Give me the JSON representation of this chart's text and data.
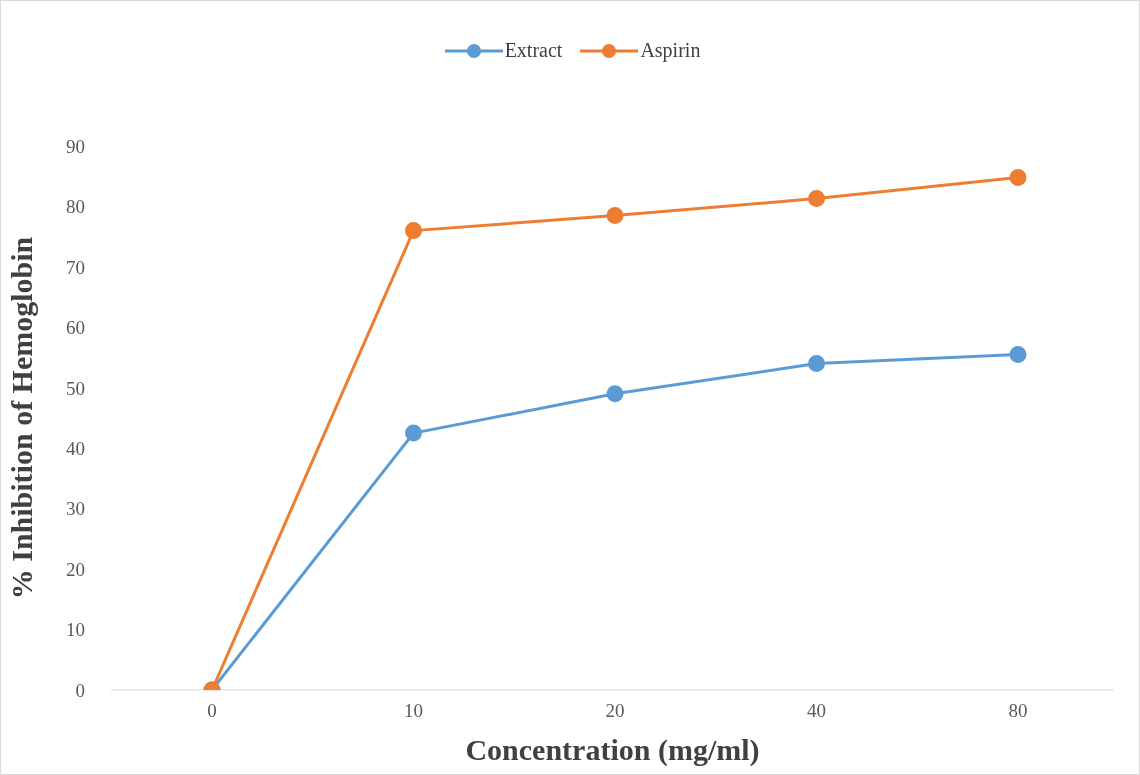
{
  "chart_data": {
    "type": "line",
    "xlabel": "Concentration (mg/ml)",
    "ylabel": "% Inhibition of Hemoglobin",
    "categories": [
      "0",
      "10",
      "20",
      "40",
      "80"
    ],
    "series": [
      {
        "name": "Extract",
        "color": "#5b9bd5",
        "values": [
          0,
          42.5,
          49,
          54,
          55.5
        ]
      },
      {
        "name": "Aspirin",
        "color": "#ed7d31",
        "values": [
          0,
          76,
          78.5,
          81.3,
          84.8
        ]
      }
    ],
    "ylim": [
      0,
      90
    ],
    "yticks": [
      0,
      10,
      20,
      30,
      40,
      50,
      60,
      70,
      80,
      90
    ],
    "grid": false,
    "legend": "top",
    "marker": "circle",
    "line_style": "solid"
  }
}
